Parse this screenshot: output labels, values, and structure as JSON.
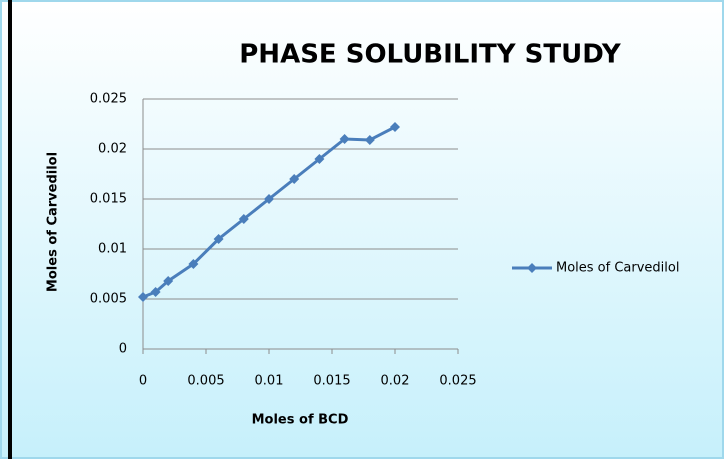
{
  "chart_data": {
    "type": "line",
    "title": "PHASE SOLUBILITY STUDY",
    "x_label": "Moles of BCD",
    "y_label": "Moles of Carvedilol",
    "x": [
      0,
      0.001,
      0.002,
      0.004,
      0.006,
      0.008,
      0.01,
      0.012,
      0.014,
      0.016,
      0.018,
      0.02
    ],
    "series": [
      {
        "name": "Moles of Carvedilol",
        "color": "#4a7ebb",
        "values": [
          0.0052,
          0.0057,
          0.0068,
          0.0085,
          0.011,
          0.013,
          0.015,
          0.017,
          0.019,
          0.021,
          0.0209,
          0.0222
        ]
      }
    ],
    "xlim": [
      0,
      0.025
    ],
    "xticks": [
      0,
      0.005,
      0.01,
      0.015,
      0.02,
      0.025
    ],
    "ylim": [
      0,
      0.025
    ],
    "yticks": [
      0,
      0.005,
      0.01,
      0.015,
      0.02,
      0.025
    ],
    "grid": true,
    "legend": "right"
  }
}
